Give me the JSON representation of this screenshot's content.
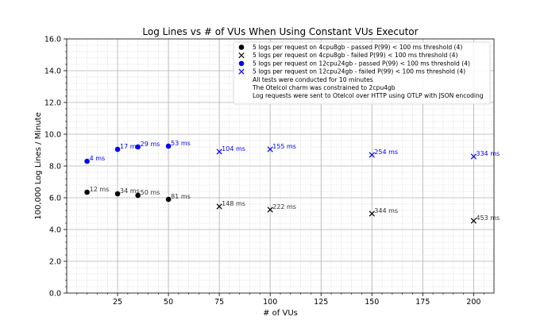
{
  "chart_data": {
    "type": "scatter",
    "title": "Log Lines vs # of VUs When Using Constant VUs Executor",
    "xlabel": "# of VUs",
    "ylabel": "100,000 Log Lines / Minute",
    "xlim": [
      0,
      210
    ],
    "ylim": [
      0,
      16
    ],
    "xticks": [
      25,
      50,
      75,
      100,
      125,
      150,
      175,
      200
    ],
    "yticks": [
      0.0,
      2.0,
      4.0,
      6.0,
      8.0,
      10.0,
      12.0,
      14.0,
      16.0
    ],
    "grid": true,
    "minor_grid": true,
    "legend_position": "upper-right",
    "series": [
      {
        "name": "5 logs per request on 4cpu8gb - passed P(99) < 100 ms threshold (4)",
        "marker": "circle",
        "color": "#000000",
        "points": [
          {
            "x": 10,
            "y": 6.35,
            "label": "12 ms"
          },
          {
            "x": 25,
            "y": 6.25,
            "label": "34 ms"
          },
          {
            "x": 35,
            "y": 6.15,
            "label": "50 ms"
          }
        ]
      },
      {
        "name": "5 logs per request on 4cpu8gb - failed P(99) < 100 ms threshold (4)",
        "marker": "x",
        "color": "#000000",
        "points": [
          {
            "x": 75,
            "y": 5.45,
            "label": "148 ms"
          },
          {
            "x": 100,
            "y": 5.25,
            "label": "222 ms"
          },
          {
            "x": 150,
            "y": 5.0,
            "label": "344 ms"
          },
          {
            "x": 200,
            "y": 4.55,
            "label": "453 ms"
          }
        ]
      },
      {
        "name": "5 logs per request on 12cpu24gb - passed P(99) < 100 ms threshold (4)",
        "marker": "circle",
        "color": "#0000ff",
        "points": [
          {
            "x": 10,
            "y": 8.3,
            "label": "4 ms"
          },
          {
            "x": 25,
            "y": 9.05,
            "label": "17 ms"
          },
          {
            "x": 35,
            "y": 9.2,
            "label": "29 ms"
          },
          {
            "x": 50,
            "y": 9.25,
            "label": "53 ms"
          }
        ]
      },
      {
        "name": "5 logs per request on 12cpu24gb - failed P(99) < 100 ms threshold (4)",
        "marker": "x",
        "color": "#0000ff",
        "points": [
          {
            "x": 75,
            "y": 8.9,
            "label": "104 ms"
          },
          {
            "x": 100,
            "y": 9.05,
            "label": "155 ms"
          },
          {
            "x": 150,
            "y": 8.7,
            "label": "254 ms"
          },
          {
            "x": 200,
            "y": 8.6,
            "label": "334 ms"
          }
        ]
      },
      {
        "name": "",
        "marker": "circle",
        "color": "#000000",
        "points": [
          {
            "x": 50,
            "y": 5.9,
            "label": "81 ms"
          }
        ]
      }
    ],
    "notes": [
      "All tests were conducted for 10 minutes",
      "The Otelcol charm was constrained to 2cpu4gb",
      "Log requests were sent to Otelcol over HTTP using OTLP with JSON encoding"
    ]
  }
}
